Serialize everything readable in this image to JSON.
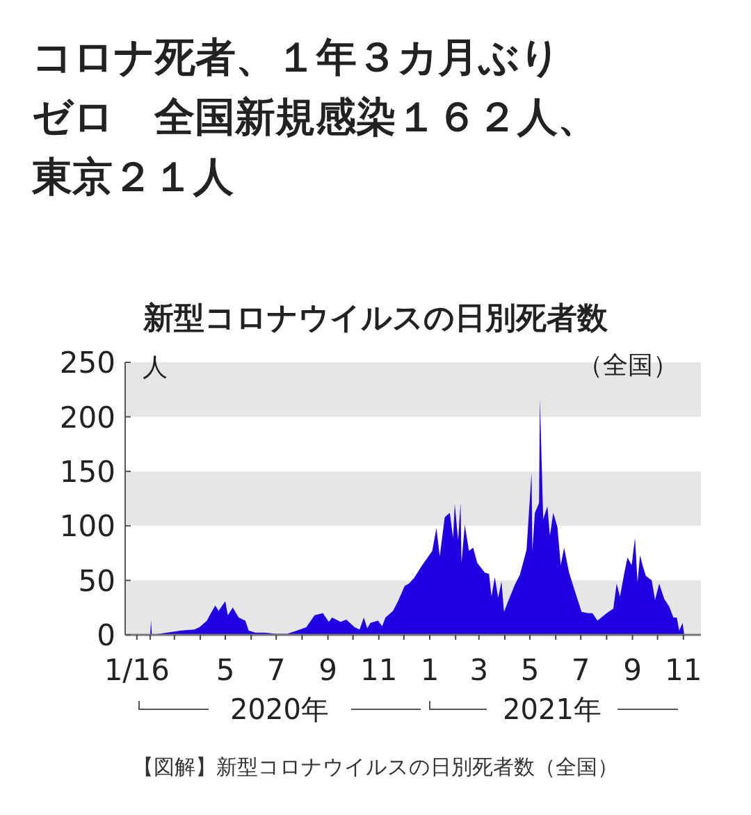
{
  "chart_data": {
    "type": "area",
    "title": "新型コロナウイルスの日別死者数",
    "subtitle": "（全国）",
    "ylabel": "人",
    "annotations": [
      "コロナ死者、１年３カ月ぶりゼロ　全国新規感染１６２人、東京２１人",
      "2020年",
      "2021年",
      "【図解】新型コロナウイルスの日別死者数（全国）"
    ],
    "series": [
      {
        "color": "#2000e0",
        "x": [
          "2020-01-16",
          "2020-02-01",
          "2020-02-02",
          "2020-02-03",
          "2020-02-21",
          "2020-03-09",
          "2020-03-25",
          "2020-03-31",
          "2020-04-09",
          "2020-04-13",
          "2020-04-19",
          "2020-04-23",
          "2020-05-01",
          "2020-05-04",
          "2020-05-10",
          "2020-05-17",
          "2020-05-25",
          "2020-05-29",
          "2020-06-06",
          "2020-06-17",
          "2020-07-01",
          "2020-07-14",
          "2020-07-26",
          "2020-08-06",
          "2020-08-16",
          "2020-08-26",
          "2020-09-02",
          "2020-09-06",
          "2020-09-16",
          "2020-09-23",
          "2020-10-03",
          "2020-10-09",
          "2020-10-14",
          "2020-10-18",
          "2020-10-22",
          "2020-10-31",
          "2020-11-05",
          "2020-11-09",
          "2020-11-18",
          "2020-11-24",
          "2020-12-02",
          "2020-12-07",
          "2020-12-13",
          "2020-12-23",
          "2021-01-04",
          "2021-01-09",
          "2021-01-13",
          "2021-01-19",
          "2021-01-25",
          "2021-01-29",
          "2021-01-31",
          "2021-02-04",
          "2021-02-07",
          "2021-02-08",
          "2021-02-12",
          "2021-02-17",
          "2021-02-22",
          "2021-02-27",
          "2021-03-08",
          "2021-03-13",
          "2021-03-16",
          "2021-03-20",
          "2021-03-24",
          "2021-03-28",
          "2021-03-31",
          "2021-04-04",
          "2021-04-13",
          "2021-04-19",
          "2021-04-27",
          "2021-05-03",
          "2021-05-04",
          "2021-05-07",
          "2021-05-12",
          "2021-05-13",
          "2021-05-17",
          "2021-05-22",
          "2021-05-25",
          "2021-05-29",
          "2021-06-03",
          "2021-06-07",
          "2021-06-11",
          "2021-06-17",
          "2021-06-24",
          "2021-07-02",
          "2021-07-10",
          "2021-07-15",
          "2021-07-21",
          "2021-08-01",
          "2021-08-09",
          "2021-08-13",
          "2021-08-17",
          "2021-08-22",
          "2021-08-26",
          "2021-08-31",
          "2021-09-04",
          "2021-09-07",
          "2021-09-10",
          "2021-09-13",
          "2021-09-17",
          "2021-09-24",
          "2021-09-28",
          "2021-10-03",
          "2021-10-09",
          "2021-10-15",
          "2021-10-20",
          "2021-10-24",
          "2021-10-27",
          "2021-10-31",
          "2021-11-02"
        ],
        "values": [
          0,
          0,
          13,
          0,
          2,
          4,
          5,
          7,
          13,
          19,
          27,
          22,
          31,
          18,
          25,
          16,
          13,
          4,
          2,
          2,
          1,
          1,
          4,
          7,
          18,
          20,
          12,
          16,
          12,
          14,
          7,
          5,
          16,
          6,
          11,
          13,
          8,
          16,
          22,
          31,
          45,
          47,
          52,
          64,
          77,
          98,
          72,
          108,
          112,
          89,
          120,
          87,
          121,
          66,
          101,
          77,
          80,
          66,
          57,
          56,
          35,
          53,
          34,
          49,
          21,
          29,
          46,
          55,
          78,
          149,
          77,
          112,
          121,
          217,
          106,
          118,
          91,
          112,
          99,
          64,
          80,
          57,
          40,
          21,
          20,
          20,
          13,
          20,
          24,
          47,
          35,
          56,
          71,
          64,
          89,
          48,
          73,
          64,
          54,
          50,
          32,
          47,
          33,
          26,
          16,
          16,
          4,
          11,
          0
        ]
      }
    ],
    "xlim": [
      "2020-01-02",
      "2021-11-22"
    ],
    "xticks": [
      {
        "value": "2020-01-16",
        "label": "1/16"
      },
      {
        "value": "2020-02-01",
        "label": null
      },
      {
        "value": "2020-03-01",
        "label": null
      },
      {
        "value": "2020-04-01",
        "label": null
      },
      {
        "value": "2020-05-01",
        "label": "5"
      },
      {
        "value": "2020-06-01",
        "label": null
      },
      {
        "value": "2020-07-01",
        "label": "7"
      },
      {
        "value": "2020-08-01",
        "label": null
      },
      {
        "value": "2020-09-01",
        "label": "9"
      },
      {
        "value": "2020-10-01",
        "label": null
      },
      {
        "value": "2020-11-01",
        "label": "11"
      },
      {
        "value": "2020-12-01",
        "label": null
      },
      {
        "value": "2021-01-01",
        "label": "1"
      },
      {
        "value": "2021-02-01",
        "label": null
      },
      {
        "value": "2021-03-01",
        "label": "3"
      },
      {
        "value": "2021-04-01",
        "label": null
      },
      {
        "value": "2021-05-01",
        "label": "5"
      },
      {
        "value": "2021-06-01",
        "label": null
      },
      {
        "value": "2021-07-01",
        "label": "7"
      },
      {
        "value": "2021-08-01",
        "label": null
      },
      {
        "value": "2021-09-01",
        "label": "9"
      },
      {
        "value": "2021-10-01",
        "label": null
      },
      {
        "value": "2021-11-01",
        "label": "11"
      }
    ],
    "ylim": [
      0,
      250
    ],
    "yticks": [
      0,
      50,
      100,
      150,
      200,
      250
    ],
    "bands": [
      {
        "axis": "y",
        "from": 0,
        "to": 50,
        "color": "#e6e6e6"
      },
      {
        "axis": "y",
        "from": 100,
        "to": 150,
        "color": "#e6e6e6"
      },
      {
        "axis": "y",
        "from": 200,
        "to": 250,
        "color": "#e6e6e6"
      }
    ]
  }
}
